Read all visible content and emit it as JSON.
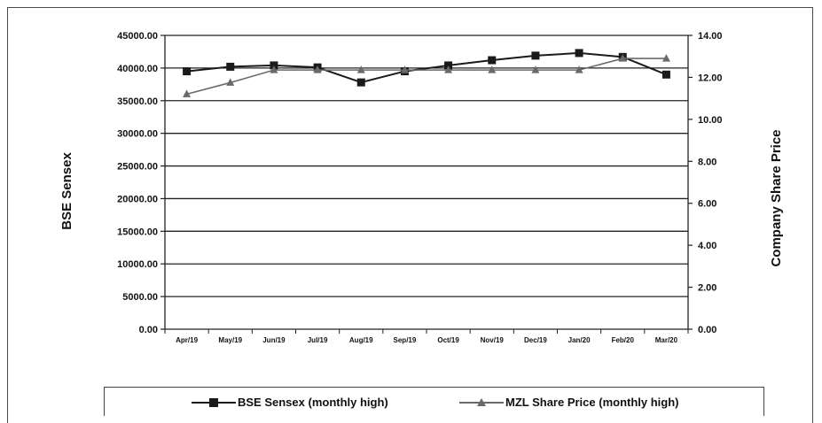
{
  "chart_data": {
    "type": "line",
    "categories": [
      "Apr/19",
      "May/19",
      "Jun/19",
      "Jul/19",
      "Aug/19",
      "Sep/19",
      "Oct/19",
      "Nov/19",
      "Dec/19",
      "Jan/20",
      "Feb/20",
      "Mar/20"
    ],
    "ylabel_left": "BSE Sensex",
    "ylabel_right": "Company Share Price",
    "ylim_left": [
      0,
      45000
    ],
    "ylim_right": [
      0,
      14
    ],
    "yticks_left": [
      "0.00",
      "5000.00",
      "10000.00",
      "15000.00",
      "20000.00",
      "25000.00",
      "30000.00",
      "35000.00",
      "40000.00",
      "45000.00"
    ],
    "yticks_right": [
      "0.00",
      "2.00",
      "4.00",
      "6.00",
      "8.00",
      "10.00",
      "12.00",
      "14.00"
    ],
    "grid": true,
    "legend_position": "bottom",
    "series": [
      {
        "name": "BSE Sensex (monthly high)",
        "axis": "left",
        "marker": "square",
        "color": "#1a1a1a",
        "values": [
          39500,
          40200,
          40400,
          40100,
          37800,
          39500,
          40400,
          41200,
          41900,
          42300,
          41700,
          39000
        ]
      },
      {
        "name": "MZL Share Price (monthly high)",
        "axis": "right",
        "marker": "triangle",
        "color": "#6a6a6a",
        "values": [
          11.2,
          11.75,
          12.35,
          12.35,
          12.35,
          12.35,
          12.35,
          12.35,
          12.35,
          12.35,
          12.9,
          12.9
        ]
      }
    ]
  }
}
